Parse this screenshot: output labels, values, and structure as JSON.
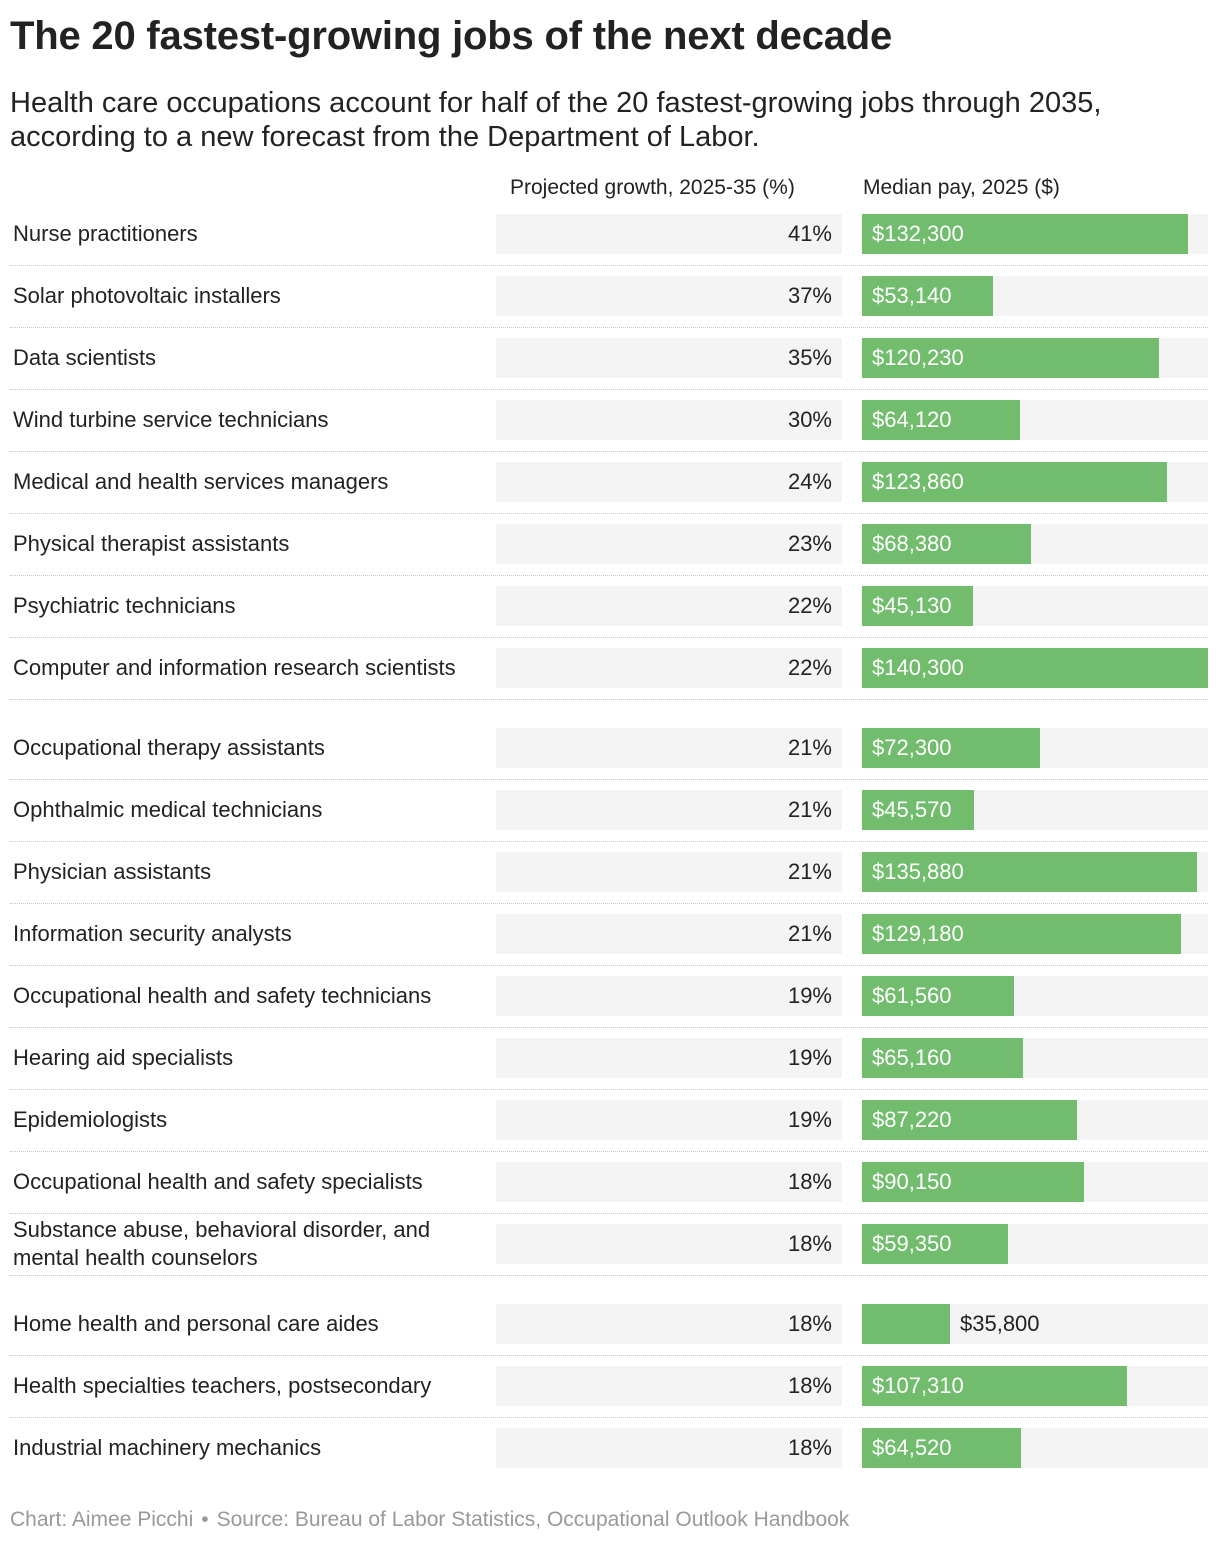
{
  "title": "The 20 fastest-growing jobs of the next decade",
  "subtitle": "Health care occupations account for half of the 20 fastest-growing jobs through 2035, according to a new forecast from the Department of Labor.",
  "footer": {
    "credit": "Chart: Aimee Picchi",
    "separator": "•",
    "source": "Source: Bureau of Labor Statistics, Occupational Outlook Handbook"
  },
  "colors": {
    "bar": "#72bd6d",
    "cell_bg": "#f4f4f4"
  },
  "chart_data": {
    "type": "table",
    "columns": [
      "Projected growth, 2025-35 (%)",
      "Median pay, 2025 ($)"
    ],
    "pay_max": 140300,
    "rows": [
      {
        "occupation": "Nurse practitioners",
        "growth": "41%",
        "pay_label": "$132,300",
        "pay": 132300
      },
      {
        "occupation": "Solar photovoltaic installers",
        "growth": "37%",
        "pay_label": "$53,140",
        "pay": 53140
      },
      {
        "occupation": "Data scientists",
        "growth": "35%",
        "pay_label": "$120,230",
        "pay": 120230
      },
      {
        "occupation": "Wind turbine service technicians",
        "growth": "30%",
        "pay_label": "$64,120",
        "pay": 64120
      },
      {
        "occupation": "Medical and health services managers",
        "growth": "24%",
        "pay_label": "$123,860",
        "pay": 123860
      },
      {
        "occupation": "Physical therapist assistants",
        "growth": "23%",
        "pay_label": "$68,380",
        "pay": 68380
      },
      {
        "occupation": "Psychiatric technicians",
        "growth": "22%",
        "pay_label": "$45,130",
        "pay": 45130
      },
      {
        "occupation": "Computer and information research scientists",
        "growth": "22%",
        "pay_label": "$140,300",
        "pay": 140300
      },
      {
        "occupation": "Occupational therapy assistants",
        "growth": "21%",
        "pay_label": "$72,300",
        "pay": 72300
      },
      {
        "occupation": "Ophthalmic medical technicians",
        "growth": "21%",
        "pay_label": "$45,570",
        "pay": 45570
      },
      {
        "occupation": "Physician assistants",
        "growth": "21%",
        "pay_label": "$135,880",
        "pay": 135880
      },
      {
        "occupation": "Information security analysts",
        "growth": "21%",
        "pay_label": "$129,180",
        "pay": 129180
      },
      {
        "occupation": "Occupational health and safety technicians",
        "growth": "19%",
        "pay_label": "$61,560",
        "pay": 61560
      },
      {
        "occupation": "Hearing aid specialists",
        "growth": "19%",
        "pay_label": "$65,160",
        "pay": 65160
      },
      {
        "occupation": "Epidemiologists",
        "growth": "19%",
        "pay_label": "$87,220",
        "pay": 87220
      },
      {
        "occupation": "Occupational health and safety specialists",
        "growth": "18%",
        "pay_label": "$90,150",
        "pay": 90150
      },
      {
        "occupation": "Substance abuse, behavioral disorder, and mental health counselors",
        "growth": "18%",
        "pay_label": "$59,350",
        "pay": 59350
      },
      {
        "occupation": "Home health and personal care aides",
        "growth": "18%",
        "pay_label": "$35,800",
        "pay": 35800
      },
      {
        "occupation": "Health specialties teachers, postsecondary",
        "growth": "18%",
        "pay_label": "$107,310",
        "pay": 107310
      },
      {
        "occupation": "Industrial machinery mechanics",
        "growth": "18%",
        "pay_label": "$64,520",
        "pay": 64520
      }
    ]
  }
}
